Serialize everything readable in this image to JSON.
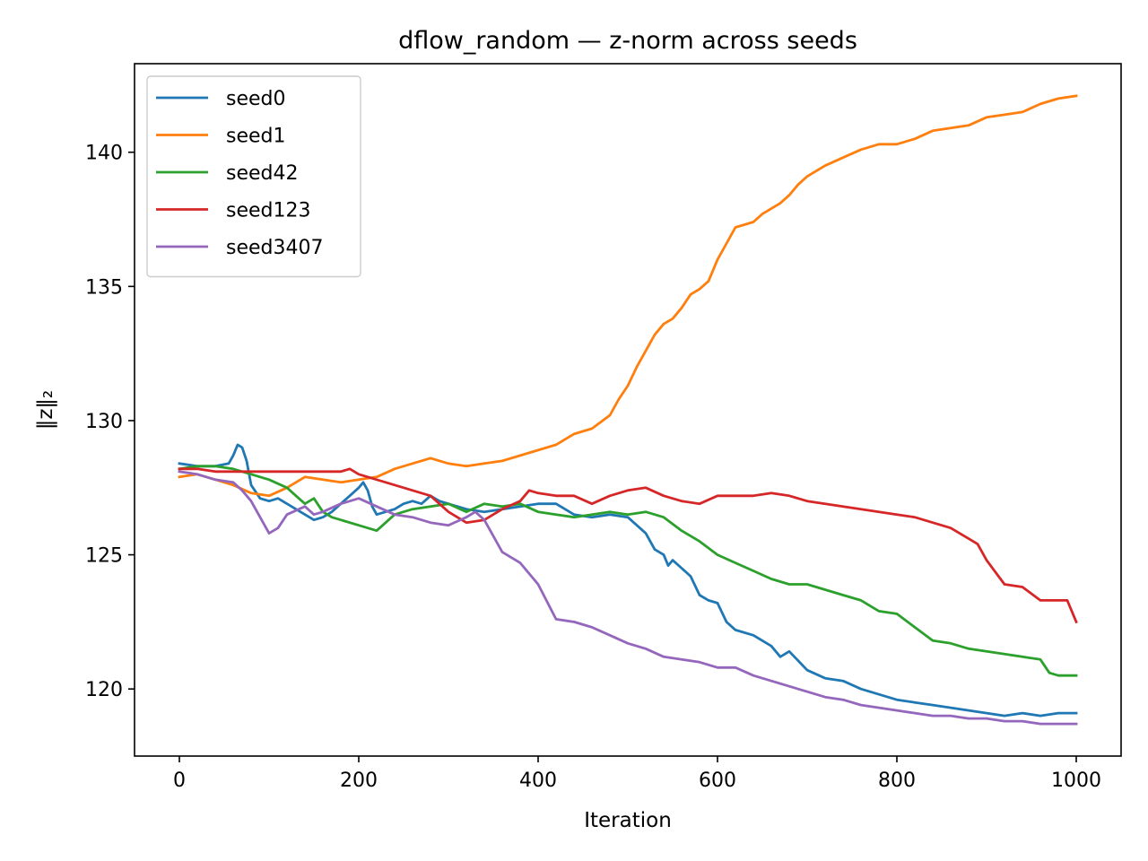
{
  "chart_data": {
    "type": "line",
    "title": "dflow_random — z-norm across seeds",
    "xlabel": "Iteration",
    "ylabel": "‖z‖₂",
    "xlim": [
      -50,
      1050
    ],
    "ylim": [
      117.5,
      143.3
    ],
    "xticks": [
      0,
      200,
      400,
      600,
      800,
      1000
    ],
    "yticks": [
      120,
      125,
      130,
      135,
      140
    ],
    "grid": false,
    "legend_position": "top-left",
    "series": [
      {
        "name": "seed0",
        "color": "#1f77b4",
        "x": [
          0,
          20,
          40,
          55,
          60,
          65,
          70,
          75,
          80,
          90,
          100,
          110,
          120,
          130,
          140,
          150,
          160,
          170,
          180,
          190,
          200,
          205,
          210,
          215,
          220,
          230,
          240,
          250,
          260,
          270,
          280,
          290,
          300,
          320,
          340,
          360,
          380,
          400,
          420,
          440,
          460,
          480,
          500,
          520,
          530,
          540,
          545,
          550,
          560,
          570,
          580,
          590,
          600,
          610,
          620,
          640,
          660,
          670,
          680,
          700,
          720,
          740,
          760,
          780,
          800,
          820,
          840,
          860,
          880,
          900,
          920,
          940,
          960,
          980,
          1000
        ],
        "y": [
          128.4,
          128.3,
          128.3,
          128.4,
          128.7,
          129.1,
          129.0,
          128.5,
          127.6,
          127.1,
          127.0,
          127.1,
          126.9,
          126.7,
          126.5,
          126.3,
          126.4,
          126.6,
          126.9,
          127.2,
          127.5,
          127.7,
          127.4,
          126.8,
          126.5,
          126.6,
          126.7,
          126.9,
          127.0,
          126.9,
          127.2,
          127.0,
          126.9,
          126.7,
          126.6,
          126.7,
          126.8,
          126.9,
          126.9,
          126.5,
          126.4,
          126.5,
          126.4,
          125.8,
          125.2,
          125.0,
          124.6,
          124.8,
          124.5,
          124.2,
          123.5,
          123.3,
          123.2,
          122.5,
          122.2,
          122.0,
          121.6,
          121.2,
          121.4,
          120.7,
          120.4,
          120.3,
          120.0,
          119.8,
          119.6,
          119.5,
          119.4,
          119.3,
          119.2,
          119.1,
          119.0,
          119.1,
          119.0,
          119.1,
          119.1
        ]
      },
      {
        "name": "seed1",
        "color": "#ff7f0e",
        "x": [
          0,
          20,
          40,
          60,
          80,
          100,
          120,
          140,
          160,
          180,
          200,
          220,
          240,
          260,
          280,
          300,
          320,
          340,
          360,
          380,
          400,
          420,
          440,
          460,
          480,
          490,
          500,
          510,
          520,
          530,
          540,
          550,
          560,
          570,
          580,
          590,
          600,
          610,
          620,
          630,
          640,
          650,
          660,
          670,
          680,
          690,
          700,
          720,
          740,
          760,
          780,
          800,
          820,
          840,
          860,
          880,
          900,
          920,
          940,
          960,
          980,
          1000
        ],
        "y": [
          127.9,
          128.0,
          127.8,
          127.6,
          127.3,
          127.2,
          127.5,
          127.9,
          127.8,
          127.7,
          127.8,
          127.9,
          128.2,
          128.4,
          128.6,
          128.4,
          128.3,
          128.4,
          128.5,
          128.7,
          128.9,
          129.1,
          129.5,
          129.7,
          130.2,
          130.8,
          131.3,
          132.0,
          132.6,
          133.2,
          133.6,
          133.8,
          134.2,
          134.7,
          134.9,
          135.2,
          136.0,
          136.6,
          137.2,
          137.3,
          137.4,
          137.7,
          137.9,
          138.1,
          138.4,
          138.8,
          139.1,
          139.5,
          139.8,
          140.1,
          140.3,
          140.3,
          140.5,
          140.8,
          140.9,
          141.0,
          141.3,
          141.4,
          141.5,
          141.8,
          142.0,
          142.1
        ]
      },
      {
        "name": "seed42",
        "color": "#2ca02c",
        "x": [
          0,
          20,
          40,
          60,
          80,
          100,
          120,
          130,
          140,
          150,
          160,
          170,
          180,
          200,
          220,
          240,
          260,
          280,
          300,
          320,
          340,
          360,
          380,
          400,
          420,
          440,
          460,
          480,
          500,
          520,
          540,
          560,
          580,
          600,
          620,
          640,
          660,
          680,
          700,
          720,
          740,
          760,
          780,
          800,
          820,
          840,
          860,
          880,
          900,
          920,
          940,
          960,
          970,
          980,
          1000
        ],
        "y": [
          128.2,
          128.3,
          128.3,
          128.2,
          128.0,
          127.8,
          127.5,
          127.2,
          126.9,
          127.1,
          126.6,
          126.4,
          126.3,
          126.1,
          125.9,
          126.5,
          126.7,
          126.8,
          126.9,
          126.6,
          126.9,
          126.8,
          126.9,
          126.6,
          126.5,
          126.4,
          126.5,
          126.6,
          126.5,
          126.6,
          126.4,
          125.9,
          125.5,
          125.0,
          124.7,
          124.4,
          124.1,
          123.9,
          123.9,
          123.7,
          123.5,
          123.3,
          122.9,
          122.8,
          122.3,
          121.8,
          121.7,
          121.5,
          121.4,
          121.3,
          121.2,
          121.1,
          120.6,
          120.5,
          120.5
        ]
      },
      {
        "name": "seed123",
        "color": "#d62728",
        "x": [
          0,
          20,
          40,
          60,
          80,
          100,
          120,
          140,
          160,
          180,
          190,
          200,
          220,
          240,
          260,
          280,
          300,
          320,
          340,
          360,
          380,
          390,
          400,
          420,
          440,
          460,
          480,
          500,
          520,
          540,
          560,
          580,
          600,
          620,
          640,
          660,
          680,
          700,
          720,
          740,
          760,
          780,
          800,
          820,
          840,
          860,
          880,
          890,
          900,
          920,
          940,
          960,
          980,
          990,
          1000
        ],
        "y": [
          128.2,
          128.2,
          128.1,
          128.1,
          128.1,
          128.1,
          128.1,
          128.1,
          128.1,
          128.1,
          128.2,
          128.0,
          127.8,
          127.6,
          127.4,
          127.2,
          126.6,
          126.2,
          126.3,
          126.7,
          127.0,
          127.4,
          127.3,
          127.2,
          127.2,
          126.9,
          127.2,
          127.4,
          127.5,
          127.2,
          127.0,
          126.9,
          127.2,
          127.2,
          127.2,
          127.3,
          127.2,
          127.0,
          126.9,
          126.8,
          126.7,
          126.6,
          126.5,
          126.4,
          126.2,
          126.0,
          125.6,
          125.4,
          124.8,
          123.9,
          123.8,
          123.3,
          123.3,
          123.3,
          122.5
        ]
      },
      {
        "name": "seed3407",
        "color": "#9467bd",
        "x": [
          0,
          20,
          40,
          60,
          70,
          80,
          90,
          100,
          110,
          120,
          140,
          150,
          160,
          180,
          200,
          220,
          240,
          260,
          280,
          300,
          320,
          330,
          340,
          350,
          360,
          380,
          400,
          420,
          440,
          460,
          480,
          500,
          520,
          540,
          560,
          580,
          600,
          620,
          640,
          660,
          680,
          700,
          720,
          740,
          760,
          780,
          800,
          820,
          840,
          860,
          880,
          900,
          920,
          940,
          960,
          980,
          1000
        ],
        "y": [
          128.1,
          128.0,
          127.8,
          127.7,
          127.4,
          127.0,
          126.4,
          125.8,
          126.0,
          126.5,
          126.8,
          126.5,
          126.6,
          126.9,
          127.1,
          126.8,
          126.5,
          126.4,
          126.2,
          126.1,
          126.4,
          126.6,
          126.3,
          125.7,
          125.1,
          124.7,
          123.9,
          122.6,
          122.5,
          122.3,
          122.0,
          121.7,
          121.5,
          121.2,
          121.1,
          121.0,
          120.8,
          120.8,
          120.5,
          120.3,
          120.1,
          119.9,
          119.7,
          119.6,
          119.4,
          119.3,
          119.2,
          119.1,
          119.0,
          119.0,
          118.9,
          118.9,
          118.8,
          118.8,
          118.7,
          118.7,
          118.7
        ]
      }
    ]
  }
}
